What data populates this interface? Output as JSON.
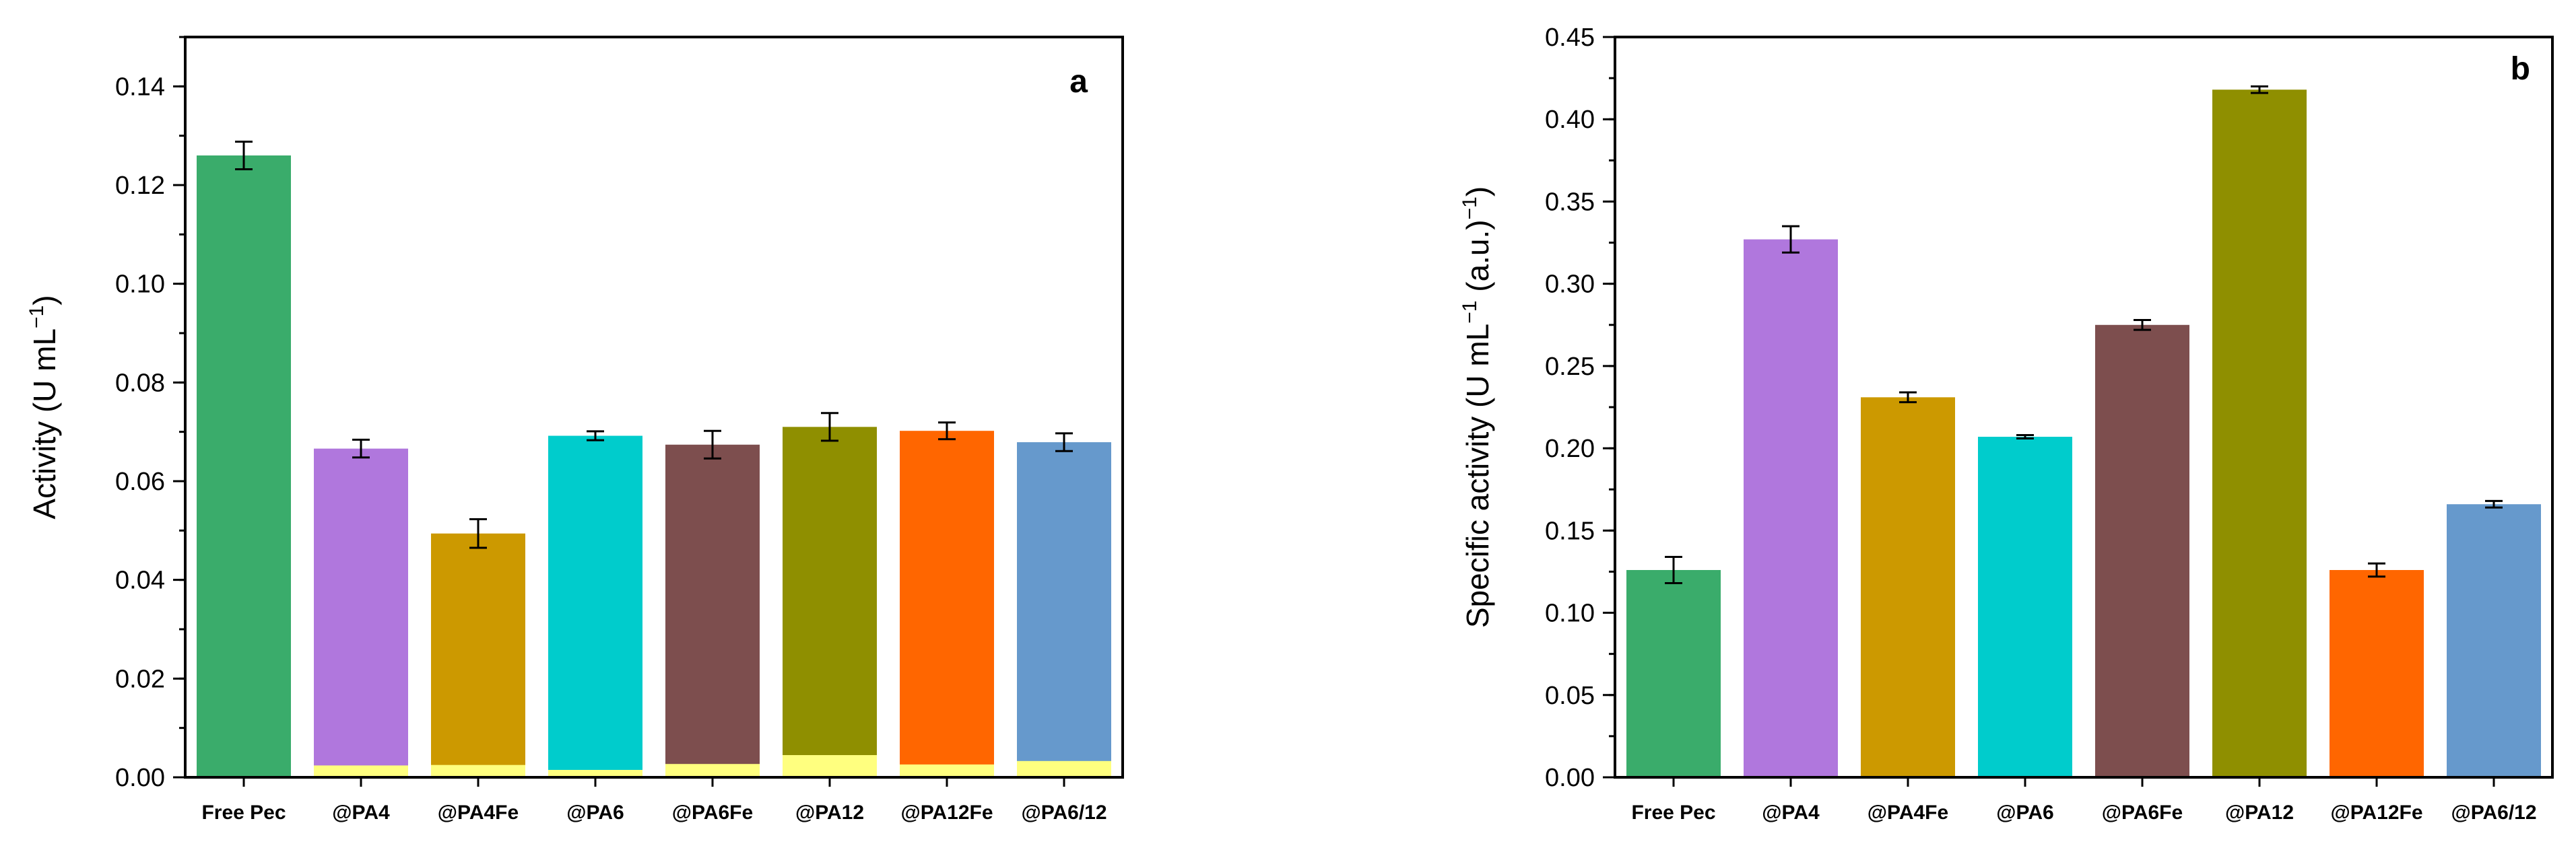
{
  "chart_data": [
    {
      "panel_label": "a",
      "type": "bar",
      "stacked_overlay": true,
      "categories": [
        "Free Pec",
        "@PA4",
        "@PA4Fe",
        "@PA6",
        "@PA6Fe",
        "@PA12",
        "@PA12Fe",
        "@PA6/12"
      ],
      "values": [
        0.126,
        0.0666,
        0.0494,
        0.0692,
        0.0674,
        0.071,
        0.0702,
        0.0679
      ],
      "errors": [
        0.0028,
        0.0018,
        0.0029,
        0.0009,
        0.0028,
        0.0028,
        0.0017,
        0.0018
      ],
      "overlay_values": [
        0,
        0.0024,
        0.0025,
        0.0015,
        0.0027,
        0.0045,
        0.0026,
        0.0033
      ],
      "overlay_color": "#ffff7f",
      "colors": [
        "#3aac6b",
        "#b077dd",
        "#cc9900",
        "#00cccc",
        "#7d4e4e",
        "#8f8f00",
        "#ff6600",
        "#6699cc"
      ],
      "ylabel_main": "Activity (U mL",
      "ylabel_sup": "−1",
      "ylabel_end": ")",
      "ylim": [
        0,
        0.15
      ],
      "yticks": [
        0.0,
        0.02,
        0.04,
        0.06,
        0.08,
        0.1,
        0.12,
        0.14
      ],
      "ytick_labels": [
        "0.00",
        "0.02",
        "0.04",
        "0.06",
        "0.08",
        "0.10",
        "0.12",
        "0.14"
      ],
      "minor_tick_step": 0.01,
      "grid": false,
      "legend": "none"
    },
    {
      "panel_label": "b",
      "type": "bar",
      "stacked_overlay": false,
      "categories": [
        "Free Pec",
        "@PA4",
        "@PA4Fe",
        "@PA6",
        "@PA6Fe",
        "@PA12",
        "@PA12Fe",
        "@PA6/12"
      ],
      "values": [
        0.126,
        0.327,
        0.231,
        0.207,
        0.275,
        0.418,
        0.126,
        0.166
      ],
      "errors": [
        0.008,
        0.008,
        0.003,
        0.001,
        0.003,
        0.002,
        0.004,
        0.002
      ],
      "colors": [
        "#3aac6b",
        "#b077dd",
        "#cc9900",
        "#00cccc",
        "#7d4e4e",
        "#8f8f00",
        "#ff6600",
        "#6699cc"
      ],
      "ylabel_main": "Specific activity (U mL",
      "ylabel_sup": "−1",
      "ylabel_end": " (a.u.)",
      "ylabel_sup2": "−1",
      "ylabel_end2": ")",
      "ylim": [
        0,
        0.45
      ],
      "yticks": [
        0.0,
        0.05,
        0.1,
        0.15,
        0.2,
        0.25,
        0.3,
        0.35,
        0.4,
        0.45
      ],
      "ytick_labels": [
        "0.00",
        "0.05",
        "0.10",
        "0.15",
        "0.20",
        "0.25",
        "0.30",
        "0.35",
        "0.40",
        "0.45"
      ],
      "minor_tick_step": 0.025,
      "grid": false,
      "legend": "none"
    }
  ]
}
